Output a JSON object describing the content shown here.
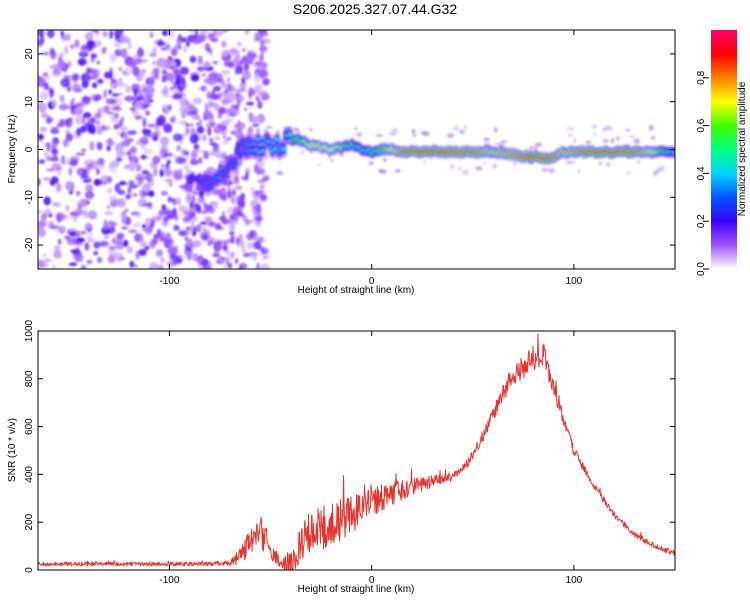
{
  "title": "S206.2025.327.07.44.G32",
  "chart_data": [
    {
      "type": "heatmap",
      "xlabel": "Height of straight line (km)",
      "ylabel": "Frequency (Hz)",
      "xlim": [
        -165,
        150
      ],
      "ylim": [
        -25,
        25
      ],
      "xticks": [
        -100,
        0,
        100
      ],
      "yticks": [
        -20,
        -10,
        0,
        10,
        20
      ],
      "noise_region": {
        "x": [
          -165,
          -52
        ],
        "y": [
          -25,
          25
        ]
      },
      "ridge": {
        "x": [
          -85,
          -80,
          -75,
          -70,
          -65,
          -60,
          -55,
          -50,
          -45,
          -40,
          -35,
          -30,
          -25,
          -20,
          -15,
          -10,
          -5,
          0,
          5,
          10,
          15,
          20,
          30,
          40,
          50,
          60,
          70,
          75,
          80,
          85,
          90,
          95,
          100,
          110,
          120,
          130,
          140,
          150
        ],
        "y": [
          -8,
          -7,
          -5,
          -3,
          0,
          1,
          1,
          1,
          1,
          2,
          2,
          1,
          0.5,
          0,
          0.5,
          1,
          0,
          -0.5,
          0,
          0,
          -0.5,
          -0.5,
          -0.5,
          -0.5,
          -0.5,
          -0.5,
          -1,
          -1.5,
          -1.5,
          -2,
          -1.5,
          -0.5,
          -0.5,
          -0.5,
          -0.5,
          -0.5,
          -0.5,
          -0.5
        ],
        "amplitude": [
          0.25,
          0.3,
          0.35,
          0.3,
          0.3,
          0.35,
          0.4,
          0.4,
          0.4,
          0.5,
          0.6,
          0.7,
          0.75,
          0.7,
          0.65,
          0.5,
          0.45,
          0.5,
          0.6,
          0.7,
          0.85,
          0.9,
          0.9,
          0.85,
          0.85,
          0.75,
          0.8,
          0.85,
          0.95,
          0.95,
          0.85,
          0.75,
          0.8,
          0.9,
          0.9,
          0.85,
          0.7,
          0.35
        ]
      },
      "colorbar": {
        "label": "Normalized spectral amplitude",
        "range": [
          0,
          1
        ],
        "ticks": [
          "0.0",
          "0.2",
          "0.4",
          "0.6",
          "0.8"
        ],
        "colors": [
          "#ffffff",
          "#9f55ff",
          "#3a00ff",
          "#0055ff",
          "#00d5ff",
          "#00ff80",
          "#40ff00",
          "#ffff00",
          "#ff8000",
          "#ff0000",
          "#ff0066"
        ]
      }
    },
    {
      "type": "line",
      "xlabel": "Height of straight line (km)",
      "ylabel": "SNR (10 * v/v)",
      "xlim": [
        -165,
        150
      ],
      "ylim": [
        0,
        1000
      ],
      "xticks": [
        -100,
        0,
        100
      ],
      "yticks": [
        0,
        200,
        400,
        600,
        800,
        1000
      ],
      "color": "#e8332b",
      "series": [
        {
          "name": "SNR",
          "x": [
            -165,
            -140,
            -120,
            -100,
            -80,
            -70,
            -65,
            -60,
            -55,
            -50,
            -45,
            -40,
            -35,
            -30,
            -25,
            -20,
            -10,
            0,
            10,
            20,
            30,
            40,
            45,
            50,
            55,
            60,
            65,
            70,
            75,
            80,
            85,
            90,
            95,
            100,
            110,
            120,
            130,
            140,
            150
          ],
          "y": [
            25,
            25,
            25,
            25,
            25,
            30,
            60,
            120,
            150,
            90,
            30,
            25,
            110,
            150,
            170,
            190,
            230,
            290,
            320,
            350,
            370,
            390,
            420,
            480,
            560,
            650,
            740,
            810,
            850,
            890,
            900,
            760,
            620,
            500,
            350,
            230,
            150,
            100,
            70
          ],
          "noise": [
            8,
            8,
            8,
            8,
            8,
            12,
            35,
            55,
            65,
            45,
            20,
            60,
            80,
            90,
            95,
            90,
            80,
            70,
            50,
            35,
            25,
            20,
            20,
            20,
            25,
            30,
            35,
            45,
            50,
            55,
            50,
            35,
            25,
            20,
            15,
            12,
            12,
            12,
            12
          ]
        }
      ]
    }
  ]
}
